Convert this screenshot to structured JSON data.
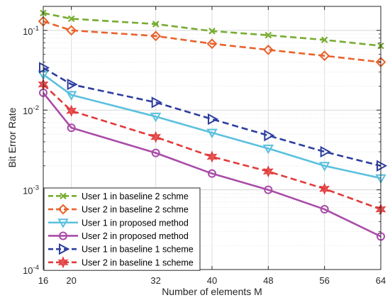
{
  "chart_data": {
    "type": "line",
    "xlabel": "Number of elements M",
    "ylabel": "Bit Error Rate",
    "x": [
      16,
      20,
      32,
      40,
      48,
      56,
      64
    ],
    "x_tick_labels": [
      "16",
      "20",
      "32",
      "40",
      "48",
      "56",
      "64"
    ],
    "xlim": [
      16,
      64
    ],
    "ylim": [
      0.0001,
      0.2
    ],
    "y_scale": "log",
    "y_tick_labels": [
      {
        "value": 0.0001,
        "base": "10",
        "exp": "-4"
      },
      {
        "value": 0.001,
        "base": "10",
        "exp": "-3"
      },
      {
        "value": 0.01,
        "base": "10",
        "exp": "-2"
      },
      {
        "value": 0.1,
        "base": "10",
        "exp": "-1"
      }
    ],
    "grid": true,
    "legend_position": "bottom-left",
    "series": [
      {
        "name": "User 1 in baseline 2 schme",
        "color": "#77ac30",
        "dash": "dashed",
        "marker": "x",
        "values": [
          0.165,
          0.14,
          0.12,
          0.098,
          0.087,
          0.076,
          0.064
        ]
      },
      {
        "name": "User 2 in baseline 2 schme",
        "color": "#e8622a",
        "dash": "dashed",
        "marker": "diamond",
        "values": [
          0.13,
          0.1,
          0.085,
          0.068,
          0.057,
          0.048,
          0.04
        ]
      },
      {
        "name": "User 1 in proposed method",
        "color": "#5bc0de",
        "dash": "solid",
        "marker": "triangle-down",
        "values": [
          0.028,
          0.0155,
          0.0083,
          0.0052,
          0.0033,
          0.002,
          0.0014
        ]
      },
      {
        "name": "User 2 in proposed method",
        "color": "#a94ca8",
        "dash": "solid",
        "marker": "circle",
        "values": [
          0.0165,
          0.006,
          0.0029,
          0.0016,
          0.001,
          0.00057,
          0.00026
        ]
      },
      {
        "name": "User 1 in baseline 1 scheme",
        "color": "#2e3ea0",
        "dash": "dashed",
        "marker": "triangle-right",
        "values": [
          0.034,
          0.021,
          0.0125,
          0.0077,
          0.0048,
          0.003,
          0.002
        ]
      },
      {
        "name": "User 2 in baseline 1 scheme",
        "color": "#e23a3a",
        "dash": "dashed",
        "marker": "hexagram",
        "values": [
          0.021,
          0.0098,
          0.0046,
          0.0026,
          0.0017,
          0.00103,
          0.00057
        ]
      }
    ]
  }
}
